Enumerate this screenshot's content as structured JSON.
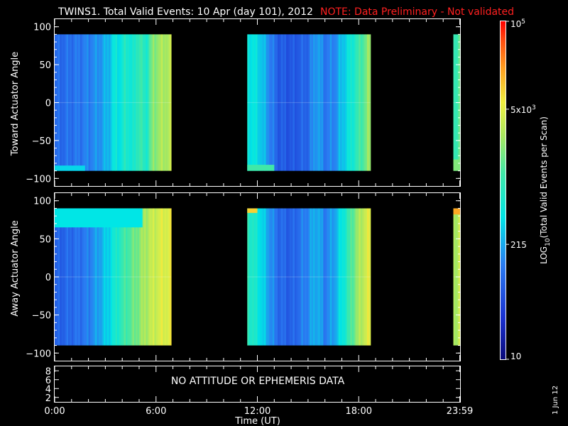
{
  "header": {
    "title": "TWINS1. Total Valid Events: 10 Apr (day 101), 2012",
    "note": "NOTE: Data Preliminary - Not validated",
    "note_color": "#ff2020"
  },
  "side_date": "1 Jun 12",
  "chart_data": [
    {
      "type": "heatmap",
      "panel": "top",
      "ylabel": "Toward Actuator Angle",
      "ylim": [
        -110,
        110
      ],
      "yticks": [
        100,
        50,
        0,
        -50,
        -100
      ],
      "data_ylim": [
        -90,
        90
      ],
      "xlim_hours": [
        0,
        24
      ],
      "segments": [
        {
          "start_hour": 0.0,
          "end_hour": 6.9,
          "profile": [
            [
              0.0,
              0.24
            ],
            [
              0.6,
              0.25
            ],
            [
              1.5,
              0.27
            ],
            [
              2.6,
              0.31
            ],
            [
              3.2,
              0.36
            ],
            [
              3.6,
              0.45
            ],
            [
              3.9,
              0.42
            ],
            [
              4.2,
              0.5
            ],
            [
              4.6,
              0.44
            ],
            [
              5.0,
              0.55
            ],
            [
              5.4,
              0.47
            ],
            [
              5.8,
              0.62
            ],
            [
              6.3,
              0.66
            ],
            [
              6.9,
              0.68
            ]
          ],
          "bottom_band": {
            "level": 0.4,
            "from_angle": -90,
            "to_angle": -83,
            "end_hour": 1.8
          }
        },
        {
          "start_hour": 11.4,
          "end_hour": 18.7,
          "profile": [
            [
              11.4,
              0.44
            ],
            [
              12.0,
              0.42
            ],
            [
              12.6,
              0.32
            ],
            [
              13.2,
              0.22
            ],
            [
              14.0,
              0.2
            ],
            [
              15.0,
              0.24
            ],
            [
              15.5,
              0.34
            ],
            [
              16.0,
              0.27
            ],
            [
              16.6,
              0.3
            ],
            [
              17.2,
              0.4
            ],
            [
              17.8,
              0.5
            ],
            [
              18.3,
              0.58
            ],
            [
              18.7,
              0.66
            ]
          ],
          "bottom_band": {
            "level": 0.55,
            "from_angle": -90,
            "to_angle": -82,
            "end_hour": 13.0
          }
        },
        {
          "start_hour": 23.6,
          "end_hour": 24.0,
          "profile": [
            [
              23.6,
              0.5
            ],
            [
              24.0,
              0.6
            ]
          ],
          "bottom_band": {
            "level": 0.62,
            "from_angle": -90,
            "to_angle": -75,
            "end_hour": 24.0
          }
        }
      ]
    },
    {
      "type": "heatmap",
      "panel": "middle",
      "ylabel": "Away Actuator Angle",
      "ylim": [
        -110,
        110
      ],
      "yticks": [
        100,
        50,
        0,
        -50,
        -100
      ],
      "data_ylim": [
        -90,
        90
      ],
      "xlim_hours": [
        0,
        24
      ],
      "segments": [
        {
          "start_hour": 0.0,
          "end_hour": 6.9,
          "profile": [
            [
              0.0,
              0.22
            ],
            [
              0.8,
              0.24
            ],
            [
              1.8,
              0.27
            ],
            [
              2.6,
              0.33
            ],
            [
              3.2,
              0.4
            ],
            [
              3.7,
              0.48
            ],
            [
              4.2,
              0.55
            ],
            [
              4.8,
              0.6
            ],
            [
              5.3,
              0.66
            ],
            [
              5.8,
              0.7
            ],
            [
              6.3,
              0.73
            ],
            [
              6.9,
              0.74
            ]
          ],
          "top_band": {
            "level": 0.42,
            "from_angle": 90,
            "to_angle": 65,
            "end_hour": 5.2
          }
        },
        {
          "start_hour": 11.4,
          "end_hour": 18.7,
          "profile": [
            [
              11.4,
              0.52
            ],
            [
              12.0,
              0.45
            ],
            [
              12.6,
              0.34
            ],
            [
              13.2,
              0.25
            ],
            [
              14.0,
              0.22
            ],
            [
              15.0,
              0.3
            ],
            [
              15.5,
              0.36
            ],
            [
              16.0,
              0.28
            ],
            [
              16.6,
              0.34
            ],
            [
              17.2,
              0.48
            ],
            [
              17.8,
              0.62
            ],
            [
              18.3,
              0.7
            ],
            [
              18.7,
              0.75
            ]
          ],
          "top_band": {
            "level": 0.8,
            "from_angle": 90,
            "to_angle": 84,
            "end_hour": 12.0
          }
        },
        {
          "start_hour": 23.6,
          "end_hour": 24.0,
          "profile": [
            [
              23.6,
              0.64
            ],
            [
              24.0,
              0.72
            ]
          ],
          "top_band": {
            "level": 0.85,
            "from_angle": 90,
            "to_angle": 82,
            "end_hour": 24.0
          }
        }
      ]
    },
    {
      "type": "line",
      "panel": "bottom",
      "yticks": [
        8,
        6,
        4,
        2
      ],
      "ylim": [
        1,
        9
      ],
      "message": "NO ATTITUDE OR EPHEMERIS DATA",
      "xlabel": "Time (UT)",
      "xtick_labels": [
        "0:00",
        "6:00",
        "12:00",
        "18:00",
        "23:59"
      ],
      "xtick_hours": [
        0,
        6,
        12,
        18,
        23.98
      ]
    }
  ],
  "colorbar": {
    "label": "LOG",
    "label_sub": "10",
    "label_rest": "(Total Valid Events per Scan)",
    "ticks": [
      {
        "base": "10",
        "exp": "5",
        "level": 1.0
      },
      {
        "base": "5x10",
        "exp": "3",
        "level": 0.74
      },
      {
        "base": "215",
        "exp": "",
        "level": 0.34
      },
      {
        "base": "10",
        "exp": "",
        "level": 0.0
      }
    ]
  }
}
